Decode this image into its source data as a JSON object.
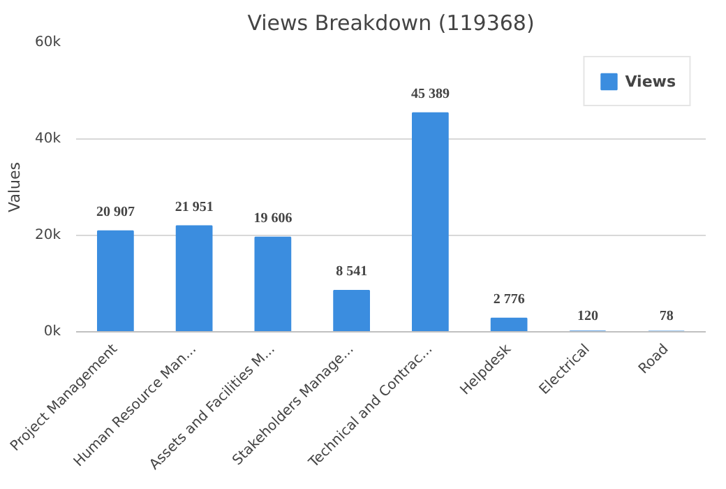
{
  "chart_data": {
    "type": "bar",
    "title": "Views Breakdown (119368)",
    "ylabel": "Values",
    "categories": [
      "Project Management",
      "Human Resource Man...",
      "Assets and Facilities M...",
      "Stakeholders Manage...",
      "Technical and Contrac...",
      "Helpdesk",
      "Electrical",
      "Road"
    ],
    "series": [
      {
        "name": "Views",
        "color": "#3b8ddf",
        "values": [
          20907,
          21951,
          19606,
          8541,
          45389,
          2776,
          120,
          78
        ],
        "value_labels": [
          "20 907",
          "21 951",
          "19 606",
          "8 541",
          "45 389",
          "2 776",
          "120",
          "78"
        ]
      }
    ],
    "ylim": [
      0,
      60000
    ],
    "yticks": [
      {
        "value": 0,
        "label": "0k"
      },
      {
        "value": 20000,
        "label": "20k"
      },
      {
        "value": 40000,
        "label": "40k"
      },
      {
        "value": 60000,
        "label": "60k"
      }
    ],
    "grid": "y",
    "legend": "top right"
  }
}
